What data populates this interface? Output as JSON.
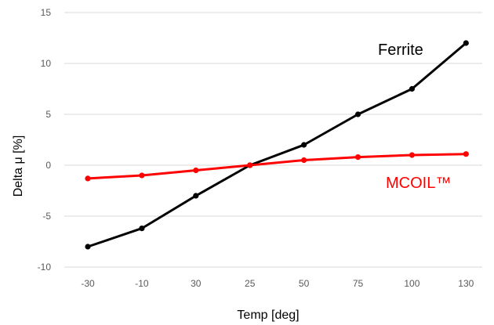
{
  "chart_data": {
    "type": "line",
    "categories": [
      "-30",
      "-10",
      "30",
      "25",
      "50",
      "75",
      "100",
      "130"
    ],
    "series": [
      {
        "name": "Ferrite",
        "color": "#000000",
        "values": [
          -8.0,
          -6.2,
          -3.0,
          0.0,
          2.0,
          5.0,
          7.5,
          12.0
        ]
      },
      {
        "name": "MCOIL™",
        "color": "#ff0000",
        "values": [
          -1.3,
          -1.0,
          -0.5,
          0.0,
          0.5,
          0.8,
          1.0,
          1.1
        ]
      }
    ],
    "xlabel": "Temp [deg]",
    "ylabel": "Delta μ [%]",
    "ylim": [
      -10,
      15
    ],
    "yticks": [
      -10,
      -5,
      0,
      5,
      10,
      15
    ],
    "grid": "horizontal",
    "legend": "none"
  }
}
